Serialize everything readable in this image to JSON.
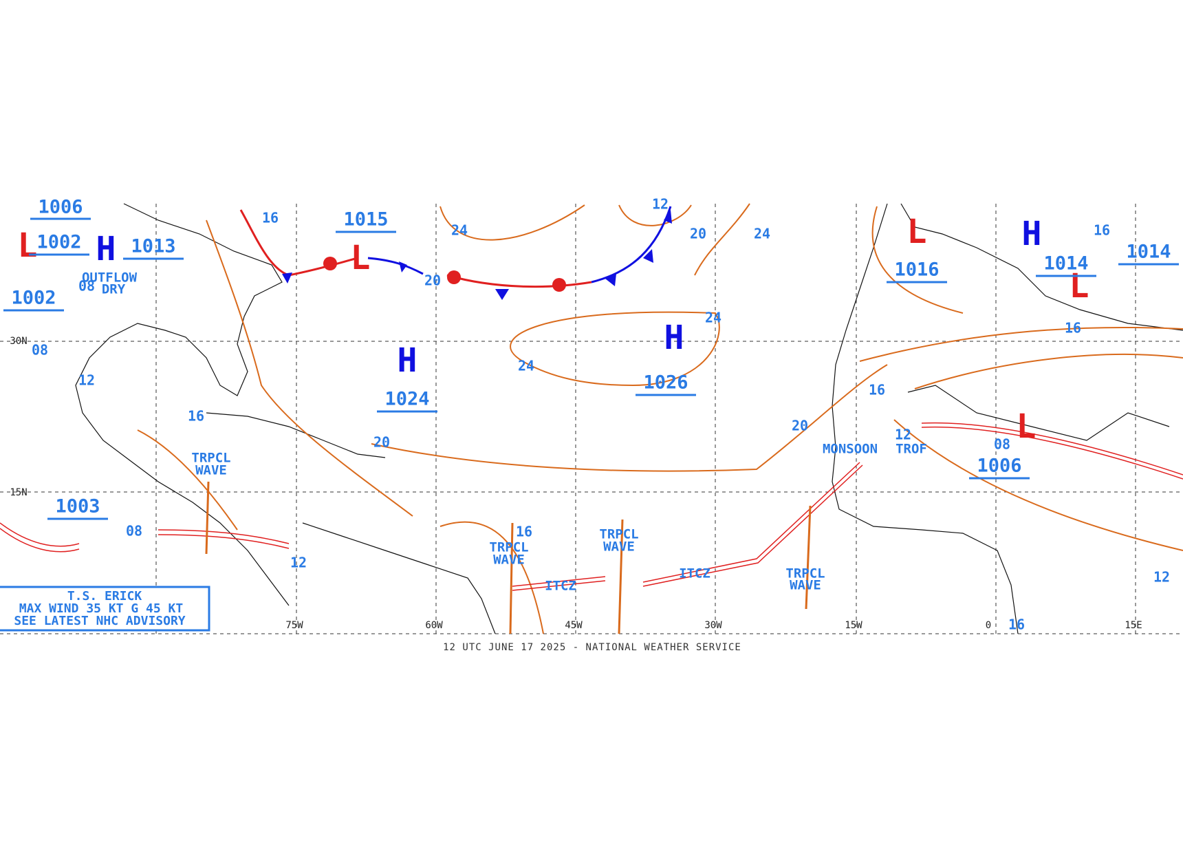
{
  "centers": [
    "H",
    "H",
    "H",
    "H",
    "L",
    "L",
    "L",
    "L",
    "L"
  ],
  "pressure_values": [
    "1024",
    "1026",
    "1013",
    "1014",
    "1015",
    "1016",
    "1006",
    "1014",
    "1003",
    "1002",
    "1002",
    "1006"
  ],
  "isobar_labels": [
    "24",
    "20",
    "24",
    "24",
    "24",
    "20",
    "16",
    "12",
    "20",
    "20",
    "16",
    "12",
    "08",
    "16",
    "12",
    "08",
    "16",
    "16",
    "12",
    "16",
    "16",
    "12",
    "08",
    "08"
  ],
  "features": [
    "TRPCL",
    "WAVE",
    "TRPCL",
    "WAVE",
    "TRPCL",
    "WAVE",
    "TRPCL",
    "WAVE",
    "ITCZ",
    "ITCZ",
    "MONSOON",
    "TROF",
    "OUTFLOW",
    "DRY"
  ],
  "storm_box": [
    "T.S. ERICK",
    "MAX WIND 35 KT G 45 KT",
    "SEE LATEST NHC ADVISORY"
  ],
  "lon_labels": [
    "75W",
    "60W",
    "45W",
    "30W",
    "15W",
    "0",
    "15E"
  ],
  "lat_labels": [
    "30N",
    "15N"
  ],
  "footer": "12 UTC JUNE 17 2025 - NATIONAL WEATHER SERVICE"
}
